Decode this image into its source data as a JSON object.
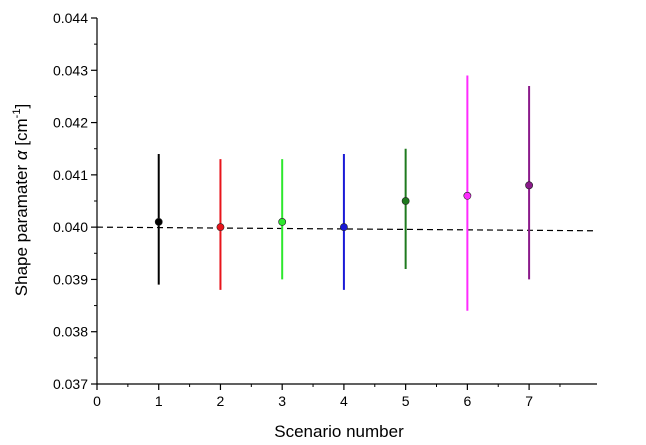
{
  "chart_data": {
    "type": "scatter",
    "xlabel": "Scenario number",
    "ylabel": {
      "prefix": "Shape paramater ",
      "symbol": "α",
      "unit_open": " [cm",
      "unit_sup": "-1",
      "unit_close": "]"
    },
    "xlim": [
      0,
      8.1
    ],
    "ylim": [
      0.037,
      0.044
    ],
    "x_ticks": [
      "0",
      "1",
      "2",
      "3",
      "4",
      "5",
      "6",
      "7"
    ],
    "y_ticks": [
      "0.037",
      "0.038",
      "0.039",
      "0.040",
      "0.041",
      "0.042",
      "0.043",
      "0.044"
    ],
    "grid": false,
    "points": [
      {
        "x": 1,
        "y": 0.0401,
        "low": 0.0389,
        "high": 0.0414,
        "color": "#000000"
      },
      {
        "x": 2,
        "y": 0.04,
        "low": 0.0388,
        "high": 0.0413,
        "color": "#e8141b"
      },
      {
        "x": 3,
        "y": 0.0401,
        "low": 0.039,
        "high": 0.0413,
        "color": "#2ee82e"
      },
      {
        "x": 4,
        "y": 0.04,
        "low": 0.0388,
        "high": 0.0414,
        "color": "#1a1ad6"
      },
      {
        "x": 5,
        "y": 0.0405,
        "low": 0.0392,
        "high": 0.0415,
        "color": "#1f7a1f"
      },
      {
        "x": 6,
        "y": 0.0406,
        "low": 0.0384,
        "high": 0.0429,
        "color": "#ff2bff"
      },
      {
        "x": 7,
        "y": 0.0408,
        "low": 0.039,
        "high": 0.0427,
        "color": "#8a1a8a"
      }
    ],
    "reference_line": {
      "style": "dashed",
      "color": "#000000",
      "x": [
        0,
        8.1
      ],
      "y": [
        0.04,
        0.03993
      ]
    }
  }
}
